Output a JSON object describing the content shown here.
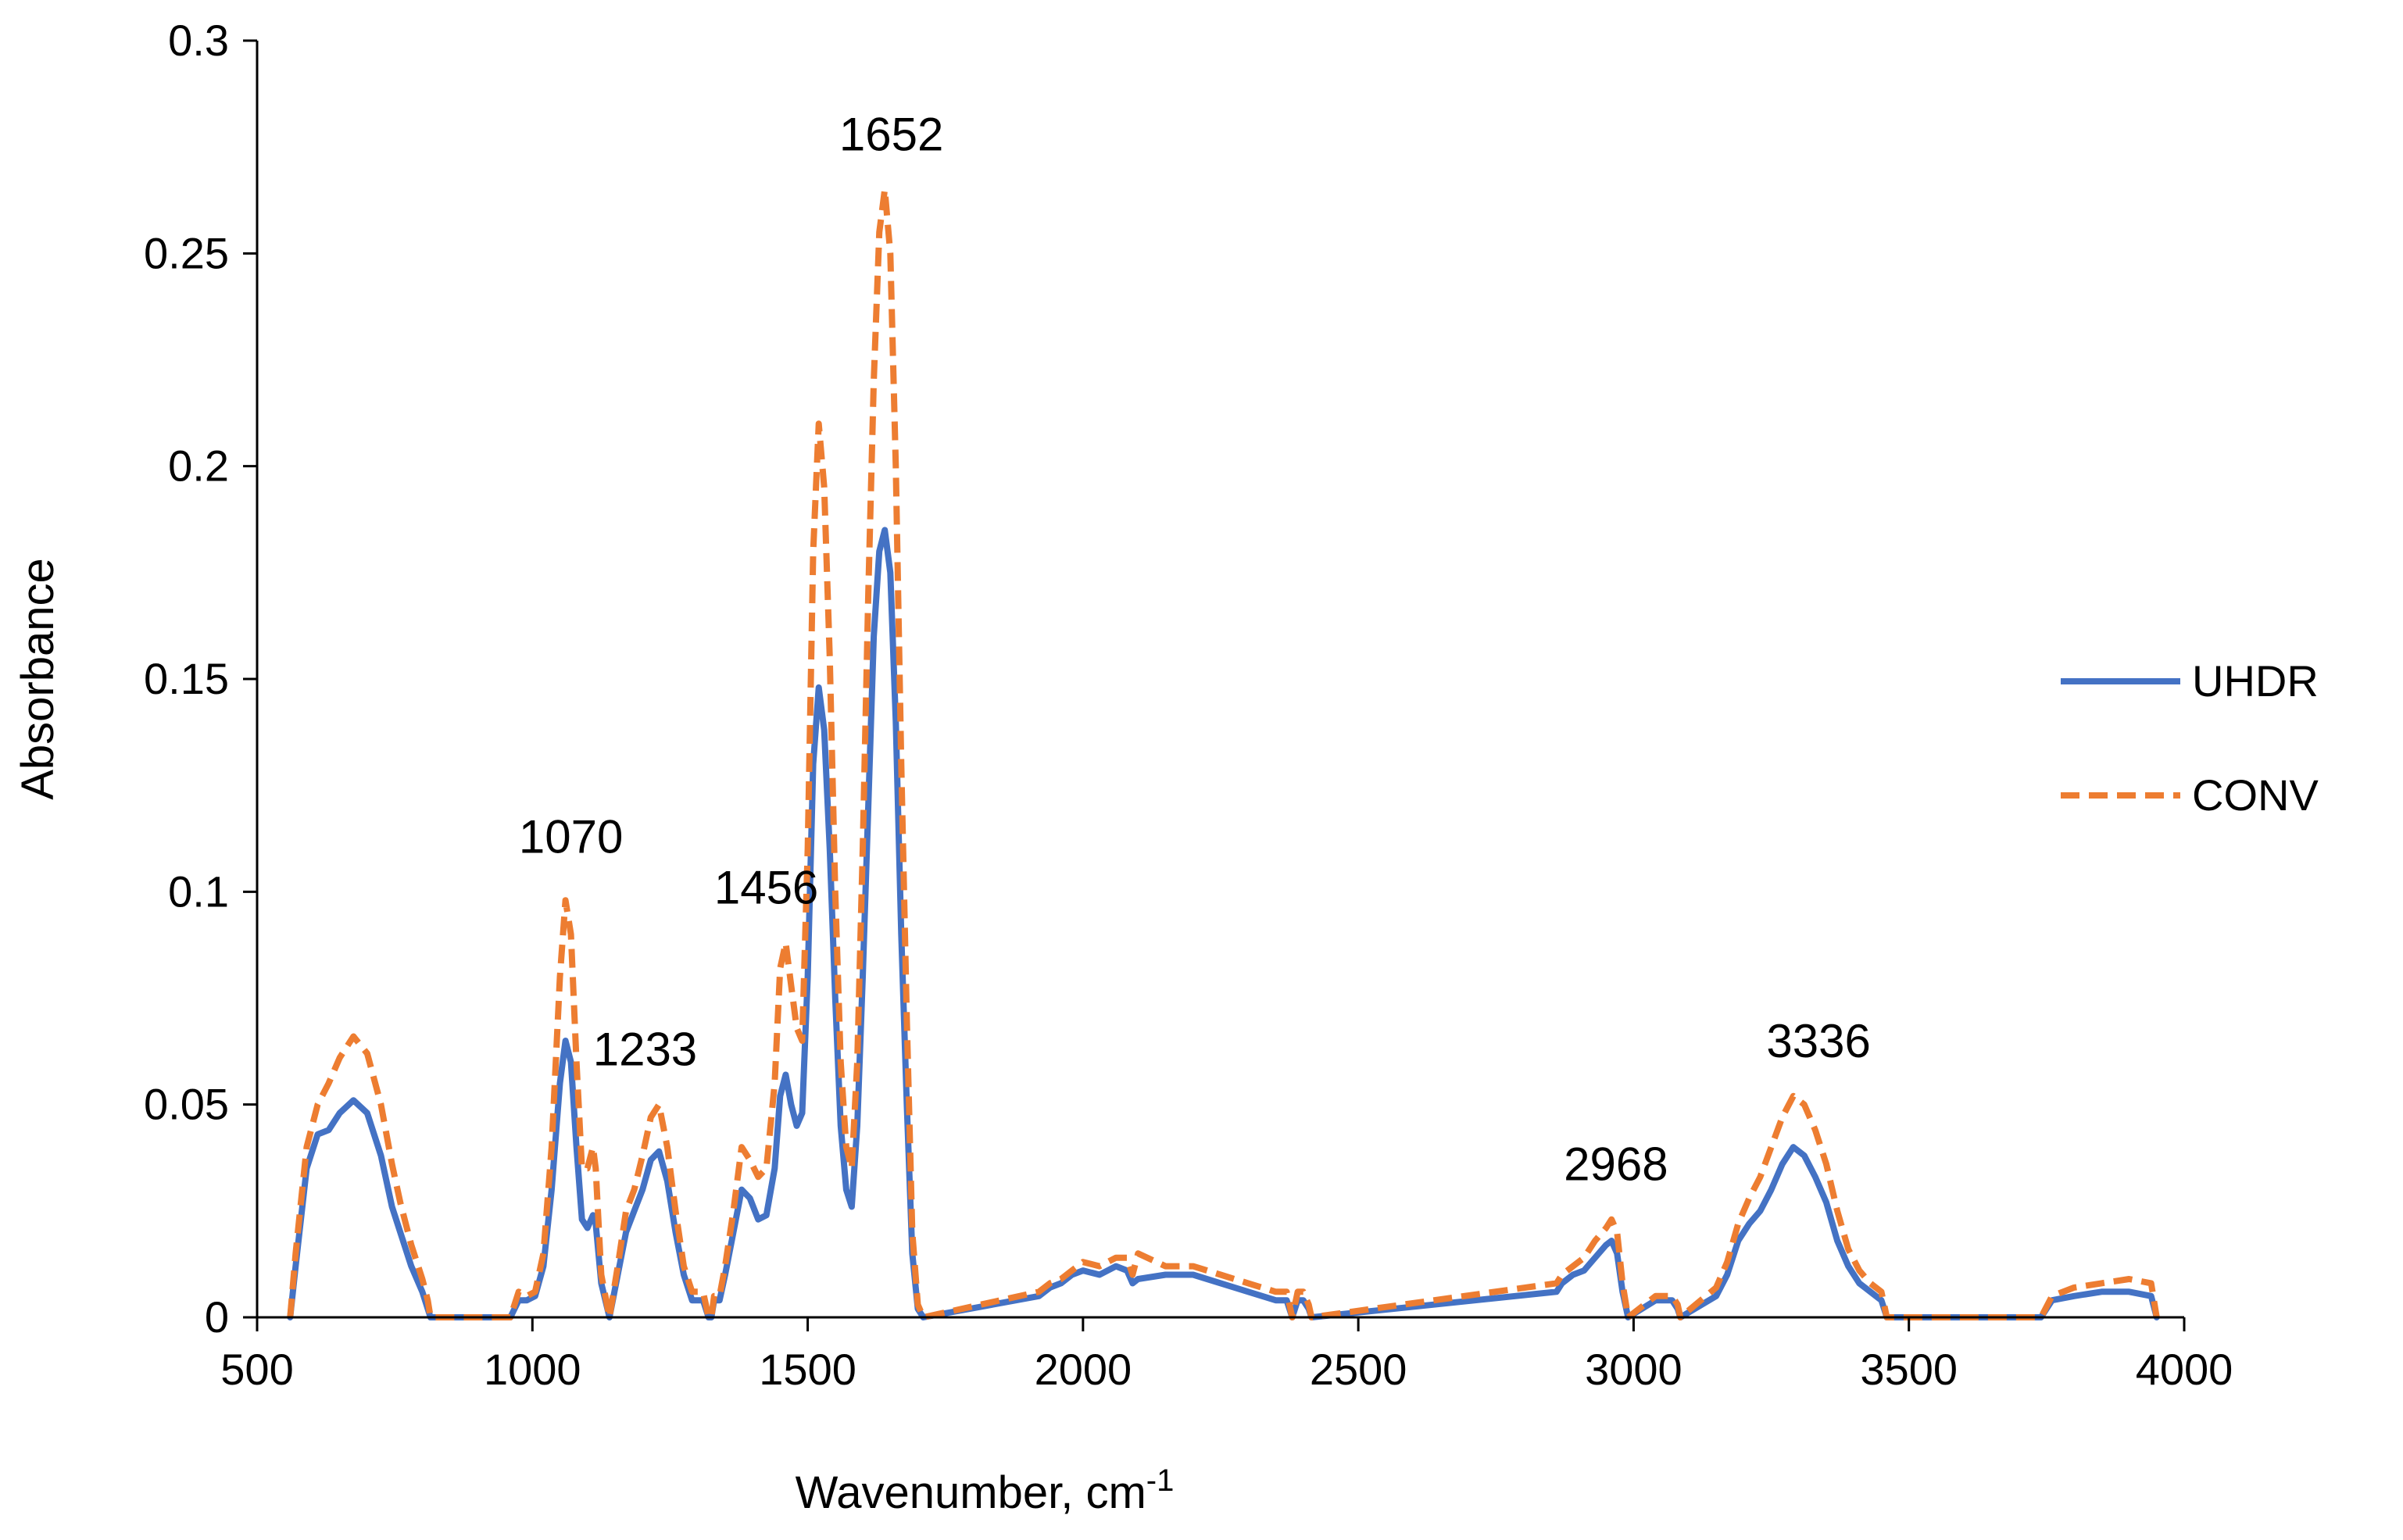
{
  "chart_data": {
    "type": "line",
    "title": "",
    "xlabel": "Wavenumber, cm",
    "xlabel_superscript": "-1",
    "ylabel": "Absorbance",
    "xlim": [
      500,
      4000
    ],
    "ylim": [
      0,
      0.3
    ],
    "x_ticks": [
      "500",
      "1000",
      "1500",
      "2000",
      "2500",
      "3000",
      "3500",
      "4000"
    ],
    "y_ticks": [
      "0",
      "0.05",
      "0.1",
      "0.15",
      "0.2",
      "0.25",
      "0.3"
    ],
    "grid": false,
    "legend_position": "right",
    "annotations": [
      {
        "text": "1070",
        "x": 1070,
        "y": 0.1
      },
      {
        "text": "1233",
        "x": 1233,
        "y": 0.05
      },
      {
        "text": "1456",
        "x": 1456,
        "y": 0.088
      },
      {
        "text": "1652",
        "x": 1652,
        "y": 0.265
      },
      {
        "text": "2968",
        "x": 2968,
        "y": 0.023
      },
      {
        "text": "3336",
        "x": 3336,
        "y": 0.052
      }
    ],
    "series": [
      {
        "name": "UHDR",
        "color": "#4472C4",
        "style": "solid",
        "x": [
          560,
          570,
          590,
          610,
          630,
          650,
          675,
          700,
          725,
          745,
          760,
          780,
          800,
          810,
          815,
          960,
          975,
          990,
          1005,
          1020,
          1035,
          1050,
          1060,
          1070,
          1080,
          1090,
          1100,
          1110,
          1115,
          1125,
          1140,
          1155,
          1170,
          1185,
          1200,
          1215,
          1230,
          1245,
          1260,
          1275,
          1290,
          1310,
          1320,
          1325,
          1330,
          1340,
          1350,
          1365,
          1380,
          1395,
          1410,
          1425,
          1440,
          1450,
          1460,
          1470,
          1480,
          1490,
          1500,
          1510,
          1520,
          1530,
          1540,
          1550,
          1560,
          1570,
          1580,
          1590,
          1600,
          1610,
          1620,
          1630,
          1640,
          1650,
          1660,
          1670,
          1680,
          1690,
          1700,
          1710,
          1920,
          1940,
          1960,
          1980,
          2000,
          2030,
          2060,
          2080,
          2090,
          2100,
          2150,
          2200,
          2250,
          2300,
          2350,
          2370,
          2380,
          2390,
          2400,
          2410,
          2415,
          2860,
          2870,
          2890,
          2910,
          2930,
          2950,
          2960,
          2970,
          2980,
          2990,
          3040,
          3050,
          3060,
          3070,
          3080,
          3085,
          3150,
          3170,
          3190,
          3210,
          3230,
          3250,
          3270,
          3290,
          3310,
          3330,
          3350,
          3370,
          3390,
          3410,
          3430,
          3450,
          3460,
          3740,
          3760,
          3800,
          3850,
          3900,
          3940,
          3950
        ],
        "y": [
          0,
          0.012,
          0.035,
          0.043,
          0.044,
          0.048,
          0.051,
          0.048,
          0.038,
          0.026,
          0.02,
          0.012,
          0.006,
          0.002,
          0,
          0,
          0.004,
          0.004,
          0.005,
          0.012,
          0.03,
          0.055,
          0.065,
          0.06,
          0.04,
          0.023,
          0.021,
          0.024,
          0.022,
          0.008,
          0,
          0.01,
          0.02,
          0.025,
          0.03,
          0.037,
          0.039,
          0.032,
          0.02,
          0.01,
          0.004,
          0.004,
          0,
          0,
          0.004,
          0.004,
          0.01,
          0.02,
          0.03,
          0.028,
          0.023,
          0.024,
          0.035,
          0.052,
          0.057,
          0.05,
          0.045,
          0.048,
          0.08,
          0.13,
          0.148,
          0.138,
          0.11,
          0.075,
          0.045,
          0.03,
          0.026,
          0.045,
          0.08,
          0.12,
          0.16,
          0.18,
          0.185,
          0.175,
          0.14,
          0.09,
          0.05,
          0.015,
          0.002,
          0,
          0.005,
          0.007,
          0.008,
          0.01,
          0.011,
          0.01,
          0.012,
          0.011,
          0.008,
          0.009,
          0.01,
          0.01,
          0.008,
          0.006,
          0.004,
          0.004,
          0,
          0.004,
          0.004,
          0.002,
          0,
          0.006,
          0.008,
          0.01,
          0.011,
          0.014,
          0.017,
          0.018,
          0.015,
          0.006,
          0,
          0.004,
          0.004,
          0.004,
          0.004,
          0.002,
          0,
          0.005,
          0.01,
          0.018,
          0.022,
          0.025,
          0.03,
          0.036,
          0.04,
          0.038,
          0.033,
          0.027,
          0.018,
          0.012,
          0.008,
          0.006,
          0.004,
          0,
          0,
          0.004,
          0.005,
          0.006,
          0.006,
          0.005,
          0
        ],
        "length": 0
      },
      {
        "name": "CONV",
        "color": "#ED7D31",
        "style": "dashed",
        "x": [
          560,
          570,
          590,
          610,
          630,
          650,
          675,
          700,
          725,
          745,
          760,
          780,
          800,
          810,
          815,
          960,
          975,
          990,
          1005,
          1020,
          1035,
          1050,
          1060,
          1070,
          1080,
          1090,
          1100,
          1110,
          1115,
          1125,
          1140,
          1155,
          1170,
          1185,
          1200,
          1215,
          1230,
          1245,
          1260,
          1275,
          1290,
          1310,
          1320,
          1325,
          1330,
          1340,
          1350,
          1365,
          1380,
          1395,
          1410,
          1425,
          1440,
          1450,
          1460,
          1470,
          1480,
          1490,
          1500,
          1510,
          1520,
          1530,
          1540,
          1550,
          1560,
          1570,
          1580,
          1590,
          1600,
          1610,
          1620,
          1630,
          1640,
          1650,
          1660,
          1670,
          1680,
          1690,
          1700,
          1710,
          1920,
          1940,
          1960,
          1980,
          2000,
          2030,
          2060,
          2080,
          2090,
          2100,
          2150,
          2200,
          2250,
          2300,
          2350,
          2370,
          2380,
          2390,
          2400,
          2410,
          2415,
          2860,
          2870,
          2890,
          2910,
          2930,
          2950,
          2960,
          2970,
          2980,
          2990,
          3040,
          3050,
          3060,
          3070,
          3080,
          3085,
          3150,
          3170,
          3190,
          3210,
          3230,
          3250,
          3270,
          3290,
          3310,
          3330,
          3350,
          3370,
          3390,
          3410,
          3430,
          3450,
          3460,
          3740,
          3760,
          3800,
          3850,
          3900,
          3940,
          3950
        ],
        "y": [
          0,
          0.015,
          0.04,
          0.05,
          0.055,
          0.061,
          0.066,
          0.062,
          0.05,
          0.036,
          0.027,
          0.017,
          0.009,
          0.004,
          0,
          0,
          0.006,
          0.005,
          0.006,
          0.015,
          0.04,
          0.08,
          0.098,
          0.09,
          0.06,
          0.035,
          0.035,
          0.04,
          0.035,
          0.01,
          0,
          0.012,
          0.025,
          0.03,
          0.038,
          0.047,
          0.05,
          0.04,
          0.025,
          0.012,
          0.006,
          0.006,
          0,
          0,
          0.005,
          0.005,
          0.012,
          0.025,
          0.04,
          0.037,
          0.033,
          0.035,
          0.055,
          0.082,
          0.088,
          0.078,
          0.068,
          0.065,
          0.11,
          0.18,
          0.21,
          0.195,
          0.155,
          0.1,
          0.06,
          0.04,
          0.035,
          0.06,
          0.11,
          0.17,
          0.22,
          0.255,
          0.265,
          0.25,
          0.2,
          0.13,
          0.07,
          0.02,
          0.003,
          0,
          0.006,
          0.008,
          0.009,
          0.011,
          0.013,
          0.012,
          0.014,
          0.014,
          0.01,
          0.015,
          0.012,
          0.012,
          0.01,
          0.008,
          0.006,
          0.006,
          0,
          0.006,
          0.006,
          0.003,
          0,
          0.008,
          0.01,
          0.012,
          0.014,
          0.018,
          0.021,
          0.023,
          0.02,
          0.008,
          0,
          0.005,
          0.005,
          0.005,
          0.005,
          0.003,
          0,
          0.007,
          0.013,
          0.022,
          0.028,
          0.033,
          0.04,
          0.047,
          0.052,
          0.05,
          0.044,
          0.036,
          0.025,
          0.016,
          0.011,
          0.008,
          0.006,
          0,
          0,
          0.005,
          0.007,
          0.008,
          0.009,
          0.008,
          0
        ]
      }
    ]
  }
}
